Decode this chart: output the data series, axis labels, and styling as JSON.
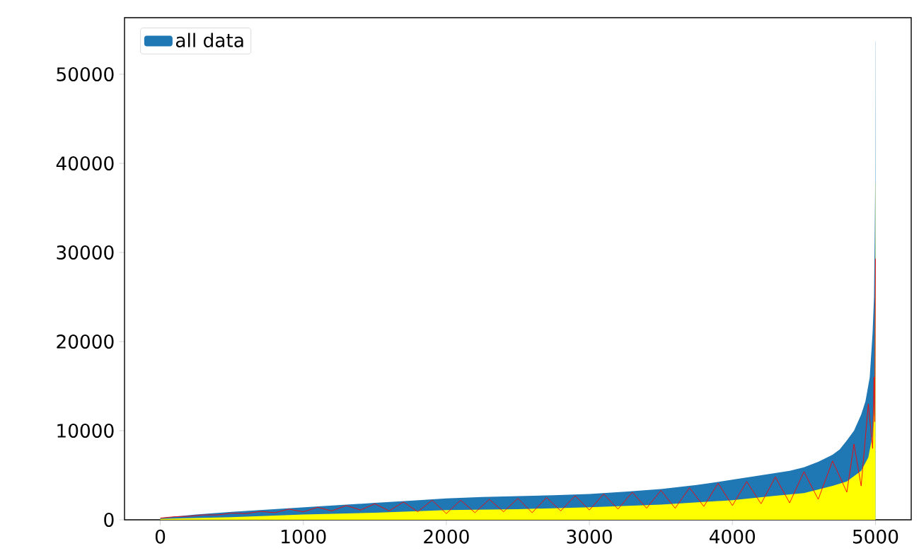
{
  "chart_data": {
    "type": "area",
    "xlim": [
      -250,
      5250
    ],
    "ylim": [
      0,
      56350
    ],
    "xticks": [
      0,
      1000,
      2000,
      3000,
      4000,
      5000
    ],
    "yticks": [
      0,
      10000,
      20000,
      30000,
      40000,
      50000
    ],
    "legend": "top left",
    "series": [
      {
        "name": "all data",
        "color": "#1f77b4",
        "x": [
          0,
          250,
          500,
          750,
          1000,
          1250,
          1500,
          1750,
          2000,
          2250,
          2500,
          2750,
          3000,
          3250,
          3500,
          3750,
          4000,
          4200,
          4400,
          4500,
          4600,
          4700,
          4750,
          4800,
          4850,
          4900,
          4930,
          4960,
          4980,
          4990,
          4995,
          4998,
          4999,
          5000
        ],
        "values": [
          200,
          600,
          900,
          1150,
          1400,
          1650,
          1900,
          2150,
          2400,
          2550,
          2650,
          2750,
          2900,
          3150,
          3450,
          3900,
          4500,
          5000,
          5500,
          5900,
          6500,
          7300,
          7900,
          8900,
          10000,
          11800,
          13300,
          16000,
          21000,
          25000,
          32000,
          37800,
          53700,
          53700
        ]
      },
      {
        "color": "#ffff00",
        "x": [
          0,
          500,
          1000,
          1500,
          2000,
          2500,
          3000,
          3500,
          4000,
          4300,
          4500,
          4700,
          4800,
          4900,
          4950,
          4980,
          4990,
          4995,
          4998,
          4999,
          5000
        ],
        "values": [
          100,
          300,
          600,
          800,
          1100,
          1200,
          1400,
          1700,
          2200,
          2700,
          3000,
          3800,
          4300,
          5500,
          7000,
          9500,
          12000,
          15000,
          25000,
          37800,
          37800
        ]
      },
      {
        "type": "line",
        "color": "#ff0000",
        "x": [
          0,
          100,
          200,
          300,
          400,
          500,
          600,
          700,
          800,
          900,
          1000,
          1100,
          1200,
          1300,
          1400,
          1500,
          1600,
          1700,
          1800,
          1900,
          2000,
          2100,
          2200,
          2300,
          2400,
          2500,
          2600,
          2700,
          2800,
          2900,
          3000,
          3100,
          3200,
          3300,
          3400,
          3500,
          3600,
          3700,
          3800,
          3900,
          4000,
          4100,
          4200,
          4300,
          4400,
          4500,
          4600,
          4700,
          4800,
          4850,
          4900,
          4950,
          4980,
          4990,
          4995,
          5000
        ],
        "values": [
          200,
          350,
          400,
          550,
          550,
          750,
          700,
          950,
          800,
          1200,
          900,
          1400,
          1000,
          1600,
          1100,
          1800,
          1000,
          2000,
          900,
          2200,
          700,
          2200,
          800,
          2300,
          900,
          2400,
          800,
          2500,
          1000,
          2700,
          1100,
          2900,
          1200,
          3100,
          1300,
          3300,
          1300,
          3600,
          1500,
          4100,
          1600,
          4300,
          1800,
          4800,
          1900,
          5400,
          2300,
          6600,
          3100,
          8500,
          3800,
          13000,
          8000,
          16000,
          11000,
          29300
        ]
      }
    ]
  }
}
